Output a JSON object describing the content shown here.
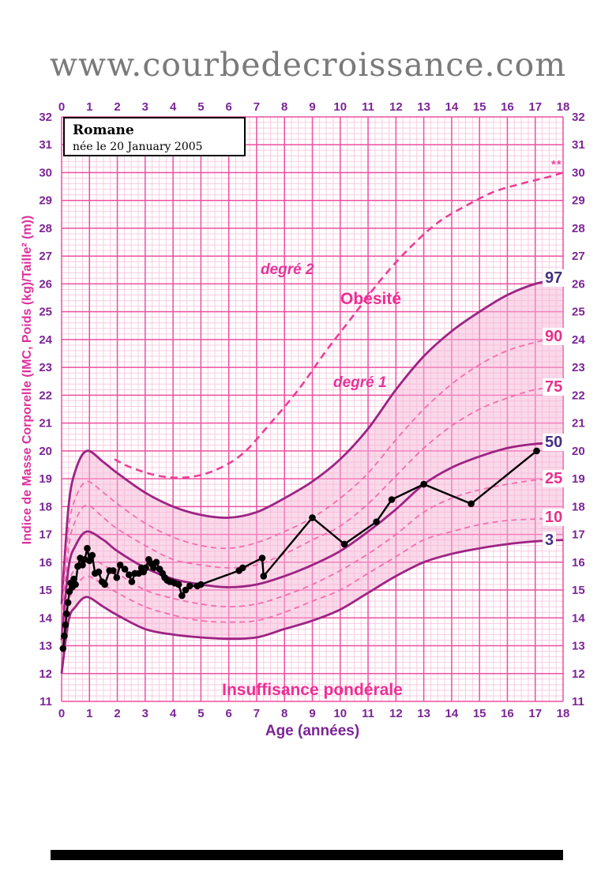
{
  "title": "www.courbedecroissance.com",
  "patient": {
    "name": "Romane",
    "birthdate": "née le 20 January 2005"
  },
  "axes": {
    "x_label": "Age (années)",
    "y_label": "Indice de Masse Corporelle (IMC, Poids (kg)/Taille² (m))",
    "x_ticks": [
      0,
      1,
      2,
      3,
      4,
      5,
      6,
      7,
      8,
      9,
      10,
      11,
      12,
      13,
      14,
      15,
      16,
      17,
      18
    ],
    "y_ticks": [
      11,
      12,
      13,
      14,
      15,
      16,
      17,
      18,
      19,
      20,
      21,
      22,
      23,
      24,
      25,
      26,
      27,
      28,
      29,
      30,
      31,
      32
    ]
  },
  "labels": {
    "degree2": "degré 2",
    "obesity": "Obésité",
    "degree1": "degré 1",
    "underweight": "Insuffisance pondérale",
    "stars": "**"
  },
  "colors": {
    "grid_minor": "#f8cce1",
    "grid_major": "#ee4fa1",
    "band_fill": "#f5b3d6",
    "solid_curve": "#9c2383",
    "dashed_curve": "#f06fae",
    "obesity_curve": "#ea3f96",
    "series": "#000000",
    "axis_text": "#7b2596",
    "title_gray": "#7a7a7a",
    "pink_label": "#e8308a",
    "dark_label": "#44307f"
  },
  "chart_data": {
    "type": "line",
    "title": "Courbe de corpulence (IMC) — fille",
    "xlabel": "Age (années)",
    "ylabel": "Indice de Masse Corporelle (IMC, Poids (kg)/Taille² (m))",
    "xlim": [
      0,
      18
    ],
    "ylim": [
      11,
      32
    ],
    "grid": true,
    "legend_position": "right-edge",
    "patient_series": {
      "name": "Romane",
      "points": [
        [
          0.05,
          12.9
        ],
        [
          0.1,
          13.35
        ],
        [
          0.14,
          13.75
        ],
        [
          0.18,
          14.15
        ],
        [
          0.23,
          14.55
        ],
        [
          0.28,
          14.95
        ],
        [
          0.33,
          15.25
        ],
        [
          0.38,
          15.1
        ],
        [
          0.44,
          15.4
        ],
        [
          0.5,
          15.2
        ],
        [
          0.58,
          15.85
        ],
        [
          0.67,
          16.15
        ],
        [
          0.75,
          15.9
        ],
        [
          0.83,
          16.1
        ],
        [
          0.92,
          16.5
        ],
        [
          1.0,
          16.05
        ],
        [
          1.1,
          16.25
        ],
        [
          1.2,
          15.6
        ],
        [
          1.33,
          15.65
        ],
        [
          1.45,
          15.3
        ],
        [
          1.55,
          15.2
        ],
        [
          1.72,
          15.7
        ],
        [
          1.85,
          15.7
        ],
        [
          1.98,
          15.45
        ],
        [
          2.1,
          15.9
        ],
        [
          2.27,
          15.75
        ],
        [
          2.42,
          15.55
        ],
        [
          2.52,
          15.3
        ],
        [
          2.63,
          15.6
        ],
        [
          2.77,
          15.6
        ],
        [
          2.87,
          15.8
        ],
        [
          2.94,
          15.65
        ],
        [
          3.02,
          15.8
        ],
        [
          3.13,
          16.1
        ],
        [
          3.22,
          15.95
        ],
        [
          3.3,
          15.8
        ],
        [
          3.4,
          16.0
        ],
        [
          3.52,
          15.75
        ],
        [
          3.62,
          15.6
        ],
        [
          3.7,
          15.45
        ],
        [
          3.79,
          15.35
        ],
        [
          3.88,
          15.3
        ],
        [
          3.96,
          15.3
        ],
        [
          4.06,
          15.25
        ],
        [
          4.2,
          15.2
        ],
        [
          4.32,
          14.8
        ],
        [
          4.45,
          15.0
        ],
        [
          4.6,
          15.15
        ],
        [
          4.87,
          15.15
        ],
        [
          5.0,
          15.2
        ],
        [
          6.37,
          15.7
        ],
        [
          6.5,
          15.8
        ],
        [
          7.2,
          16.15
        ],
        [
          7.25,
          15.5
        ],
        [
          9.0,
          17.6
        ],
        [
          10.15,
          16.65
        ],
        [
          11.3,
          17.45
        ],
        [
          11.85,
          18.25
        ],
        [
          13.0,
          18.8
        ],
        [
          14.7,
          18.1
        ],
        [
          17.05,
          20.0
        ]
      ]
    },
    "percentiles": [
      {
        "label": "97",
        "style": "solid",
        "end_value": 26.2,
        "points": [
          [
            0,
            14.5
          ],
          [
            0.25,
            18.0
          ],
          [
            0.5,
            19.3
          ],
          [
            0.9,
            20.0
          ],
          [
            1.5,
            19.6
          ],
          [
            2,
            19.2
          ],
          [
            3,
            18.5
          ],
          [
            4,
            18.0
          ],
          [
            5,
            17.7
          ],
          [
            6,
            17.6
          ],
          [
            7,
            17.8
          ],
          [
            8,
            18.3
          ],
          [
            9,
            18.9
          ],
          [
            10,
            19.7
          ],
          [
            11,
            20.8
          ],
          [
            12,
            22.2
          ],
          [
            13,
            23.4
          ],
          [
            14,
            24.3
          ],
          [
            15,
            25.0
          ],
          [
            16,
            25.6
          ],
          [
            17,
            26.0
          ],
          [
            18,
            26.2
          ]
        ]
      },
      {
        "label": "90",
        "style": "dashed",
        "end_value": 24.1,
        "points": [
          [
            0,
            14.0
          ],
          [
            0.25,
            17.2
          ],
          [
            0.5,
            18.3
          ],
          [
            0.9,
            18.9
          ],
          [
            1.5,
            18.5
          ],
          [
            2,
            18.1
          ],
          [
            3,
            17.4
          ],
          [
            4,
            16.9
          ],
          [
            5,
            16.6
          ],
          [
            6,
            16.5
          ],
          [
            7,
            16.7
          ],
          [
            8,
            17.1
          ],
          [
            9,
            17.6
          ],
          [
            10,
            18.3
          ],
          [
            11,
            19.2
          ],
          [
            12,
            20.4
          ],
          [
            13,
            21.5
          ],
          [
            14,
            22.4
          ],
          [
            15,
            23.1
          ],
          [
            16,
            23.6
          ],
          [
            17,
            23.9
          ],
          [
            18,
            24.1
          ]
        ]
      },
      {
        "label": "75",
        "style": "dashed",
        "end_value": 22.3,
        "points": [
          [
            0,
            13.6
          ],
          [
            0.25,
            16.5
          ],
          [
            0.5,
            17.5
          ],
          [
            0.9,
            18.05
          ],
          [
            1.5,
            17.6
          ],
          [
            2,
            17.2
          ],
          [
            3,
            16.6
          ],
          [
            4,
            16.1
          ],
          [
            5,
            15.9
          ],
          [
            6,
            15.8
          ],
          [
            7,
            15.9
          ],
          [
            8,
            16.3
          ],
          [
            9,
            16.8
          ],
          [
            10,
            17.3
          ],
          [
            11,
            18.1
          ],
          [
            12,
            19.1
          ],
          [
            13,
            20.1
          ],
          [
            14,
            20.9
          ],
          [
            15,
            21.5
          ],
          [
            16,
            21.9
          ],
          [
            17,
            22.2
          ],
          [
            18,
            22.3
          ]
        ]
      },
      {
        "label": "50",
        "style": "solid",
        "end_value": 20.3,
        "points": [
          [
            0,
            13.2
          ],
          [
            0.25,
            15.8
          ],
          [
            0.5,
            16.6
          ],
          [
            0.9,
            17.1
          ],
          [
            1.5,
            16.8
          ],
          [
            2,
            16.4
          ],
          [
            3,
            15.8
          ],
          [
            4,
            15.4
          ],
          [
            5,
            15.2
          ],
          [
            6,
            15.1
          ],
          [
            7,
            15.2
          ],
          [
            8,
            15.5
          ],
          [
            9,
            15.9
          ],
          [
            10,
            16.4
          ],
          [
            11,
            17.1
          ],
          [
            12,
            17.9
          ],
          [
            13,
            18.8
          ],
          [
            14,
            19.4
          ],
          [
            15,
            19.8
          ],
          [
            16,
            20.1
          ],
          [
            17,
            20.25
          ],
          [
            18,
            20.3
          ]
        ]
      },
      {
        "label": "25",
        "style": "dashed",
        "end_value": 19.0,
        "points": [
          [
            0,
            12.8
          ],
          [
            0.25,
            15.1
          ],
          [
            0.5,
            15.8
          ],
          [
            0.9,
            16.2
          ],
          [
            1.5,
            15.9
          ],
          [
            2,
            15.6
          ],
          [
            3,
            15.0
          ],
          [
            4,
            14.7
          ],
          [
            5,
            14.5
          ],
          [
            6,
            14.4
          ],
          [
            7,
            14.5
          ],
          [
            8,
            14.8
          ],
          [
            9,
            15.2
          ],
          [
            10,
            15.7
          ],
          [
            11,
            16.3
          ],
          [
            12,
            17.0
          ],
          [
            13,
            17.8
          ],
          [
            14,
            18.3
          ],
          [
            15,
            18.6
          ],
          [
            16,
            18.8
          ],
          [
            17,
            18.95
          ],
          [
            18,
            19.0
          ]
        ]
      },
      {
        "label": "10",
        "style": "dashed",
        "end_value": 17.6,
        "points": [
          [
            0,
            12.4
          ],
          [
            0.25,
            14.5
          ],
          [
            0.5,
            15.1
          ],
          [
            0.9,
            15.5
          ],
          [
            1.5,
            15.2
          ],
          [
            2,
            14.9
          ],
          [
            3,
            14.4
          ],
          [
            4,
            14.1
          ],
          [
            5,
            13.9
          ],
          [
            6,
            13.85
          ],
          [
            7,
            13.9
          ],
          [
            8,
            14.2
          ],
          [
            9,
            14.6
          ],
          [
            10,
            15.0
          ],
          [
            11,
            15.6
          ],
          [
            12,
            16.2
          ],
          [
            13,
            16.8
          ],
          [
            14,
            17.1
          ],
          [
            15,
            17.35
          ],
          [
            16,
            17.5
          ],
          [
            17,
            17.55
          ],
          [
            18,
            17.6
          ]
        ]
      },
      {
        "label": "3",
        "style": "solid",
        "end_value": 16.8,
        "points": [
          [
            0,
            12.0
          ],
          [
            0.25,
            13.9
          ],
          [
            0.5,
            14.4
          ],
          [
            0.9,
            14.75
          ],
          [
            1.5,
            14.4
          ],
          [
            2,
            14.1
          ],
          [
            3,
            13.6
          ],
          [
            4,
            13.4
          ],
          [
            5,
            13.3
          ],
          [
            6,
            13.25
          ],
          [
            7,
            13.3
          ],
          [
            8,
            13.6
          ],
          [
            9,
            13.9
          ],
          [
            10,
            14.3
          ],
          [
            11,
            14.9
          ],
          [
            12,
            15.5
          ],
          [
            13,
            16.0
          ],
          [
            14,
            16.3
          ],
          [
            15,
            16.5
          ],
          [
            16,
            16.65
          ],
          [
            17,
            16.75
          ],
          [
            18,
            16.8
          ]
        ]
      }
    ],
    "obesity_curve": {
      "label": "degré 2",
      "style": "bold-dashed",
      "end_marker": "**",
      "points": [
        [
          1.9,
          19.7
        ],
        [
          2.5,
          19.4
        ],
        [
          3.5,
          19.1
        ],
        [
          4.5,
          19.05
        ],
        [
          5.5,
          19.3
        ],
        [
          6.5,
          19.9
        ],
        [
          7.5,
          21.0
        ],
        [
          8.5,
          22.2
        ],
        [
          9.5,
          23.6
        ],
        [
          10.5,
          24.9
        ],
        [
          11.5,
          26.2
        ],
        [
          12.5,
          27.3
        ],
        [
          13.5,
          28.2
        ],
        [
          14.5,
          28.8
        ],
        [
          15.5,
          29.3
        ],
        [
          16.5,
          29.6
        ],
        [
          17.5,
          29.85
        ],
        [
          18,
          30.0
        ]
      ]
    }
  }
}
